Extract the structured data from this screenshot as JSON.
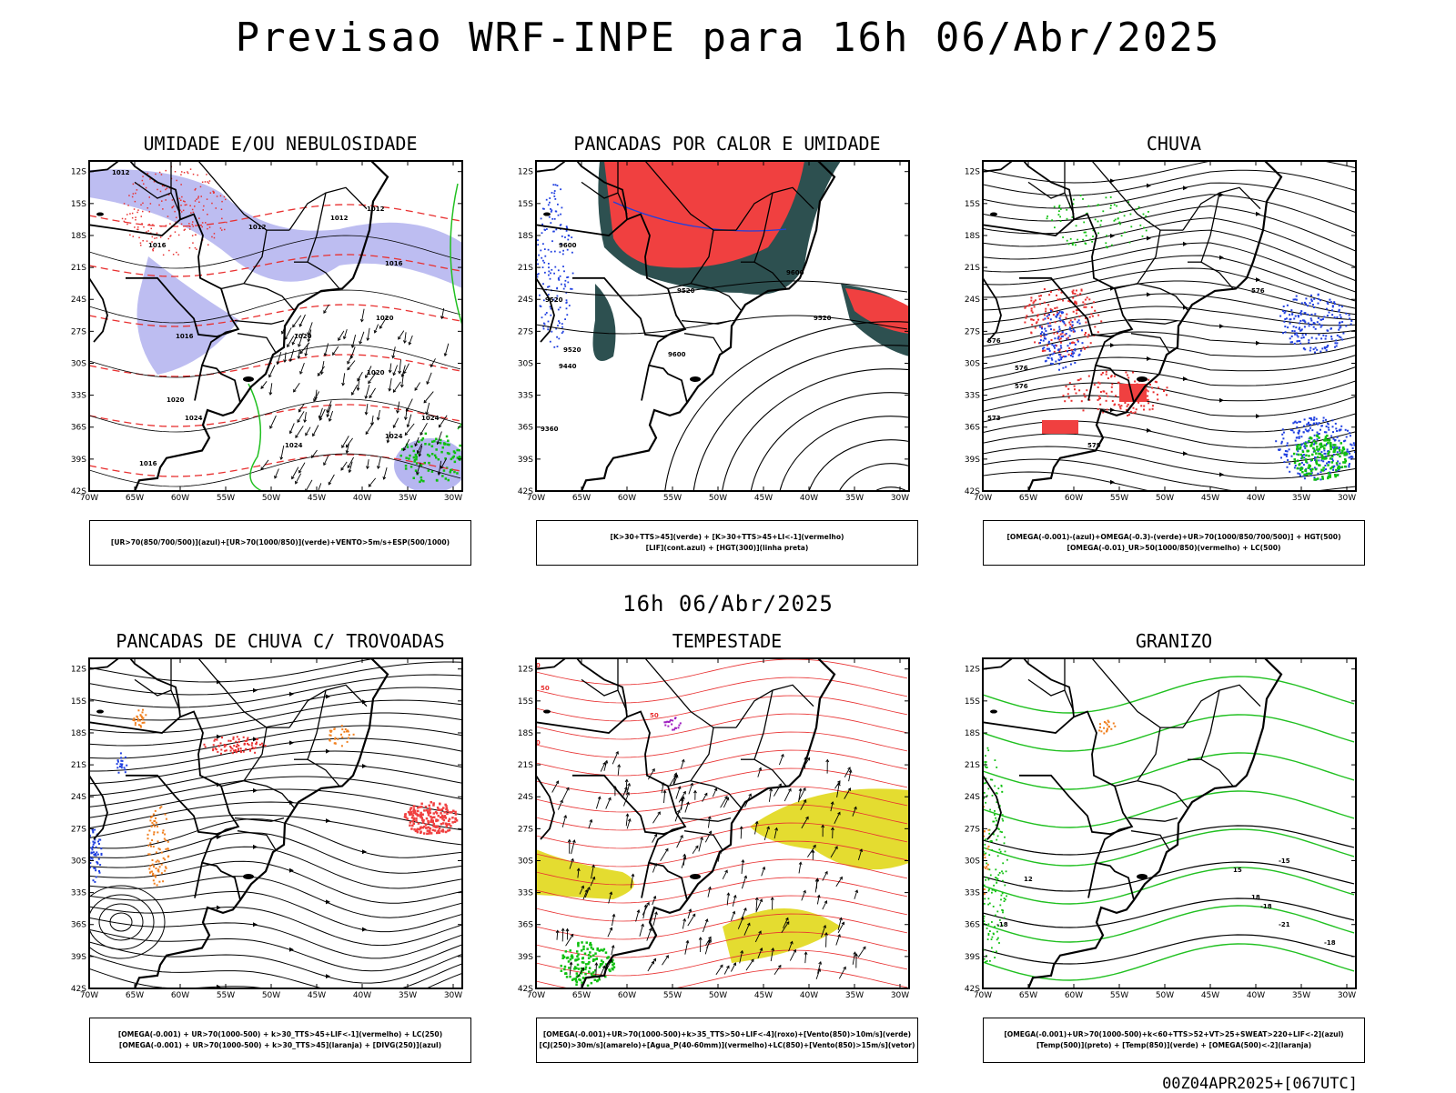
{
  "header": {
    "title": "Previsao WRF-INPE  para 16h 06/Abr/2025",
    "mid_date": "16h 06/Abr/2025",
    "footer": "00Z04APR2025+[067UTC]"
  },
  "axes": {
    "lat_labels": [
      "12S",
      "15S",
      "18S",
      "21S",
      "24S",
      "27S",
      "30S",
      "33S",
      "36S",
      "39S",
      "42S"
    ],
    "lon_labels": [
      "70W",
      "65W",
      "60W",
      "55W",
      "50W",
      "45W",
      "40W",
      "35W",
      "30W"
    ]
  },
  "panels": [
    {
      "title": "UMIDADE E/OU NEBULOSIDADE",
      "legend": [
        "[UR>70(850/700/500)](azul)+[UR>70(1000/850)](verde)+VENTO>5m/s+ESP(500/1000)"
      ],
      "contour_labels": [
        "1012",
        "1012",
        "1016",
        "1012",
        "1012",
        "1016",
        "1016",
        "1020",
        "1020",
        "1020",
        "1024",
        "1024",
        "1024",
        "1024",
        "1016",
        "1020"
      ]
    },
    {
      "title": "PANCADAS POR CALOR E UMIDADE",
      "legend": [
        "[K>30+TTS>45](verde)  +  [K>30+TTS>45+LI<-1](vermelho)",
        "[LIF](cont.azul)  +  [HGT(300)](linha preta)"
      ],
      "contour_labels": [
        "9600",
        "9520",
        "9520",
        "9440",
        "9360",
        "9600",
        "9520",
        "9600",
        "9520"
      ]
    },
    {
      "title": "CHUVA",
      "legend": [
        "[OMEGA(-0.001)-(azul)+OMEGA(-0.3)-(verde)+UR>70(1000/850/700/500)]  +  HGT(500)",
        "[OMEGA(-0.01)_UR>50(1000/850)(vermelho)  +  LC(500)"
      ],
      "contour_labels": [
        "576",
        "576",
        "573",
        "579",
        "576",
        "576"
      ]
    },
    {
      "title": "PANCADAS DE CHUVA C/ TROVOADAS",
      "legend": [
        "[OMEGA(-0.001)  +  UR>70(1000-500)  +  k>30_TTS>45+LIF<-1](vermelho)  +  LC(250)",
        "[OMEGA(-0.001)  +  UR>70(1000-500)  +  k>30_TTS>45](laranja)  +  [DIVG(250)](azul)"
      ]
    },
    {
      "title": "TEMPESTADE",
      "legend": [
        "[OMEGA(-0.001)+UR>70(1000-500)+k>35_TTS>50+LIF<-4](roxo)+[Vento(850)>10m/s](verde)",
        "[CJ(250)>30m/s](amarelo)+[Agua_P(40-60mm)](vermelho)+LC(850)+[Vento(850)>15m/s](vetor)"
      ],
      "contour_labels": [
        "50",
        "50",
        "50",
        "50"
      ]
    },
    {
      "title": "GRANIZO",
      "legend": [
        "[OMEGA(-0.001)+UR>70(1000-500)+k<60+TTS>52+VT>25+SWEAT>220+LIF<-2](azul)",
        "[Temp(500)](preto)  +  [Temp(850)](verde)  +  [OMEGA(500)<-2](laranja)"
      ],
      "contour_labels": [
        "-15",
        "-18",
        "-18",
        "-21",
        "-18",
        "12",
        "15",
        "18"
      ]
    }
  ],
  "colors": {
    "blue_humidity": "#b6b6f0",
    "green_line": "#20c020",
    "red_line": "#e83030",
    "red_fill": "#f04040",
    "dark_teal": "#2d5050",
    "yellow": "#e4dc30",
    "orange": "#f08020",
    "blue_pts": "#2040e0",
    "purple": "#a020c0",
    "green_fill": "#10c010"
  }
}
